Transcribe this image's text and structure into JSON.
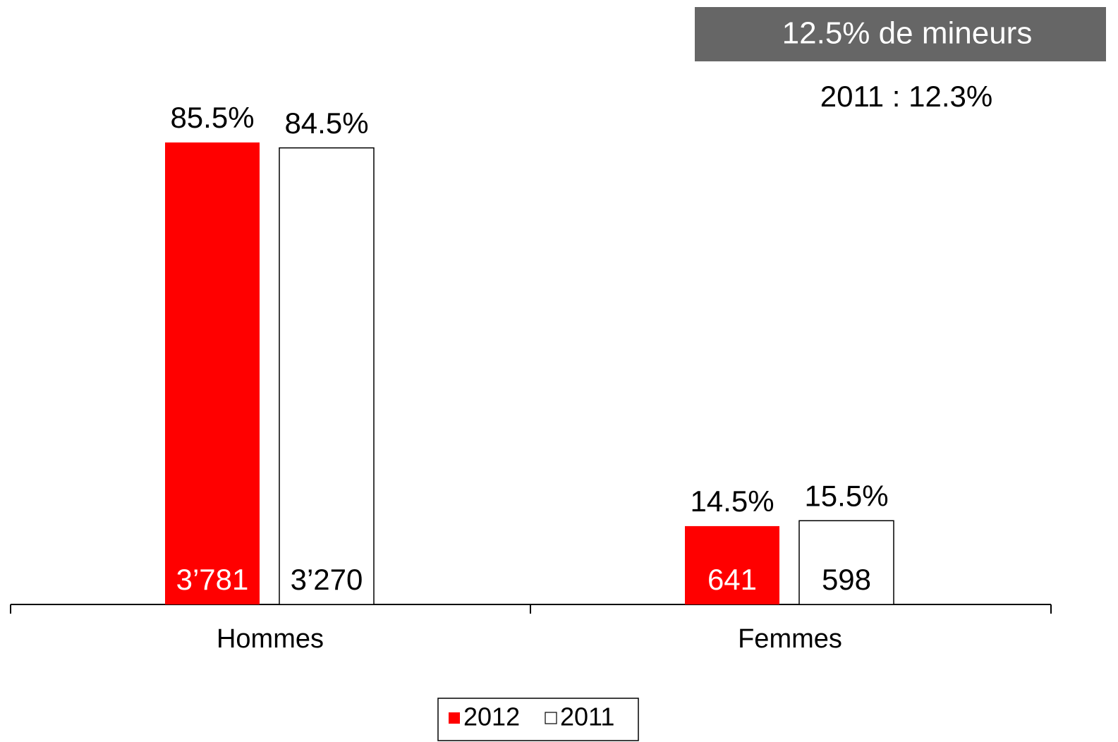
{
  "chart_data": {
    "type": "bar",
    "categories": [
      "Hommes",
      "Femmes"
    ],
    "series": [
      {
        "name": "2012",
        "color": "#ff0000",
        "values": [
          85.5,
          14.5
        ],
        "value_labels": [
          "85.5%",
          "14.5%"
        ],
        "counts": [
          3781,
          641
        ],
        "count_labels": [
          "3’781",
          "641"
        ]
      },
      {
        "name": "2011",
        "color": "#ffffff",
        "values": [
          84.5,
          15.5
        ],
        "value_labels": [
          "84.5%",
          "15.5%"
        ],
        "counts": [
          3270,
          598
        ],
        "count_labels": [
          "3’270",
          "598"
        ]
      }
    ],
    "annotations": [
      "12.5% de mineurs",
      "2011 : 12.3%"
    ],
    "legend": "bottom"
  }
}
